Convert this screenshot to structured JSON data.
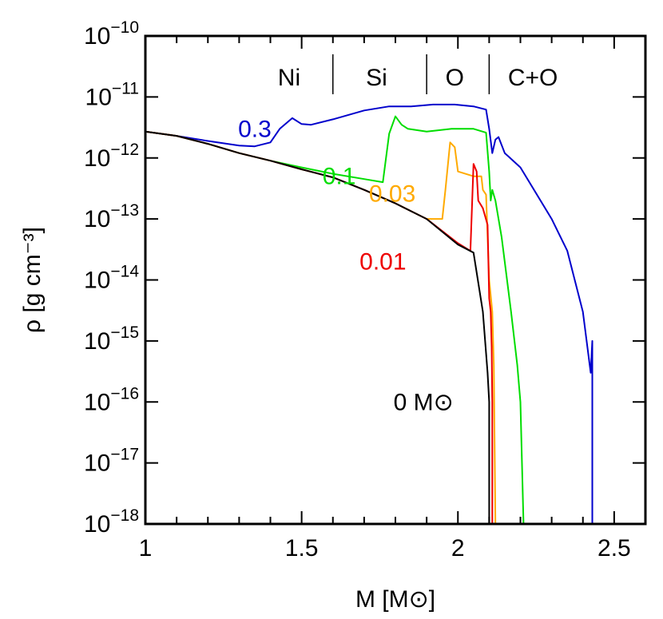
{
  "chart_data": {
    "type": "line",
    "xlabel": "M [M⊙]",
    "ylabel": "ρ [g cm⁻³]",
    "xlim": [
      1,
      2.6
    ],
    "ylim": [
      1e-18,
      1e-10
    ],
    "yscale": "log",
    "grid": false,
    "x_ticks": [
      "1",
      "1.5",
      "2",
      "2.5"
    ],
    "y_tick_exponents": [
      "−10",
      "−11",
      "−12",
      "−13",
      "−14",
      "−15",
      "−16",
      "−17",
      "−18"
    ],
    "y_tick_base": "10",
    "region_labels": [
      {
        "text": "Ni",
        "x": 1.46
      },
      {
        "text": "Si",
        "x": 1.74
      },
      {
        "text": "O",
        "x": 1.99
      },
      {
        "text": "C+O",
        "x": 2.24
      }
    ],
    "region_dividers": [
      1.6,
      1.9,
      2.1
    ],
    "series": [
      {
        "name": "0.3",
        "color": "#0000cc",
        "label_x": 1.35,
        "label_y": 3e-12,
        "points": [
          [
            1.0,
            2.7e-12
          ],
          [
            1.1,
            2.3e-12
          ],
          [
            1.2,
            1.9e-12
          ],
          [
            1.3,
            1.6e-12
          ],
          [
            1.35,
            1.55e-12
          ],
          [
            1.4,
            1.8e-12
          ],
          [
            1.43,
            3e-12
          ],
          [
            1.47,
            4.5e-12
          ],
          [
            1.5,
            3.6e-12
          ],
          [
            1.53,
            3.5e-12
          ],
          [
            1.6,
            4.3e-12
          ],
          [
            1.7,
            6e-12
          ],
          [
            1.78,
            7e-12
          ],
          [
            1.85,
            7e-12
          ],
          [
            1.88,
            7.2e-12
          ],
          [
            1.92,
            7.5e-12
          ],
          [
            1.99,
            7.5e-12
          ],
          [
            2.05,
            7e-12
          ],
          [
            2.09,
            6.2e-12
          ],
          [
            2.1,
            3e-12
          ],
          [
            2.11,
            1.2e-12
          ],
          [
            2.12,
            2e-12
          ],
          [
            2.13,
            2.2e-12
          ],
          [
            2.15,
            1.2e-12
          ],
          [
            2.2,
            7e-13
          ],
          [
            2.3,
            1e-13
          ],
          [
            2.35,
            3e-14
          ],
          [
            2.4,
            3e-15
          ],
          [
            2.425,
            3e-16
          ],
          [
            2.43,
            1e-15
          ],
          [
            2.43,
            1e-18
          ]
        ]
      },
      {
        "name": "0.1",
        "color": "#00dd00",
        "label_x": 1.62,
        "label_y": 5e-13,
        "points": [
          [
            1.0,
            2.7e-12
          ],
          [
            1.1,
            2.3e-12
          ],
          [
            1.2,
            1.7e-12
          ],
          [
            1.3,
            1.2e-12
          ],
          [
            1.4,
            9e-13
          ],
          [
            1.5,
            7e-13
          ],
          [
            1.6,
            5.5e-13
          ],
          [
            1.7,
            4.5e-13
          ],
          [
            1.76,
            4e-13
          ],
          [
            1.78,
            2.5e-12
          ],
          [
            1.8,
            4.8e-12
          ],
          [
            1.82,
            3.5e-12
          ],
          [
            1.84,
            3e-12
          ],
          [
            1.9,
            2.7e-12
          ],
          [
            1.98,
            3e-12
          ],
          [
            2.05,
            3e-12
          ],
          [
            2.09,
            2.6e-12
          ],
          [
            2.1,
            6e-13
          ],
          [
            2.105,
            2e-13
          ],
          [
            2.11,
            3e-13
          ],
          [
            2.12,
            2e-13
          ],
          [
            2.14,
            5e-14
          ],
          [
            2.17,
            3e-15
          ],
          [
            2.19,
            4e-16
          ],
          [
            2.2,
            1e-16
          ],
          [
            2.21,
            1e-18
          ]
        ]
      },
      {
        "name": "0.03",
        "color": "#ffaa00",
        "label_x": 1.79,
        "label_y": 2.6e-13,
        "points": [
          [
            1.0,
            2.7e-12
          ],
          [
            1.1,
            2.3e-12
          ],
          [
            1.2,
            1.7e-12
          ],
          [
            1.3,
            1.2e-12
          ],
          [
            1.4,
            9e-13
          ],
          [
            1.5,
            6.5e-13
          ],
          [
            1.6,
            4.8e-13
          ],
          [
            1.7,
            3e-13
          ],
          [
            1.8,
            1.8e-13
          ],
          [
            1.9,
            1e-13
          ],
          [
            1.95,
            1e-13
          ],
          [
            1.96,
            3e-13
          ],
          [
            1.975,
            1.8e-12
          ],
          [
            1.99,
            1.5e-12
          ],
          [
            2.0,
            6e-13
          ],
          [
            2.05,
            5e-13
          ],
          [
            2.075,
            5e-13
          ],
          [
            2.08,
            3e-13
          ],
          [
            2.09,
            2.5e-13
          ],
          [
            2.1,
            1e-14
          ],
          [
            2.11,
            3e-15
          ],
          [
            2.115,
            4e-16
          ],
          [
            2.12,
            1e-18
          ]
        ]
      },
      {
        "name": "0.01",
        "color": "#ee0000",
        "label_x": 1.76,
        "label_y": 2e-14,
        "points": [
          [
            1.0,
            2.7e-12
          ],
          [
            1.1,
            2.3e-12
          ],
          [
            1.2,
            1.7e-12
          ],
          [
            1.3,
            1.2e-12
          ],
          [
            1.4,
            9e-13
          ],
          [
            1.5,
            6.5e-13
          ],
          [
            1.6,
            4.8e-13
          ],
          [
            1.7,
            3e-13
          ],
          [
            1.8,
            1.8e-13
          ],
          [
            1.9,
            1e-13
          ],
          [
            2.0,
            4e-14
          ],
          [
            2.04,
            3e-14
          ],
          [
            2.05,
            8e-13
          ],
          [
            2.06,
            6e-13
          ],
          [
            2.065,
            2e-13
          ],
          [
            2.08,
            1.5e-13
          ],
          [
            2.095,
            8e-14
          ],
          [
            2.1,
            5e-15
          ],
          [
            2.105,
            3e-15
          ],
          [
            2.108,
            8e-16
          ],
          [
            2.11,
            1e-16
          ],
          [
            2.11,
            1e-18
          ]
        ]
      },
      {
        "name": "0 M⊙",
        "color": "#000000",
        "label_x": 1.89,
        "label_y": 1e-16,
        "points": [
          [
            1.0,
            2.7e-12
          ],
          [
            1.1,
            2.3e-12
          ],
          [
            1.2,
            1.7e-12
          ],
          [
            1.3,
            1.2e-12
          ],
          [
            1.4,
            9e-13
          ],
          [
            1.5,
            6.5e-13
          ],
          [
            1.6,
            4.8e-13
          ],
          [
            1.7,
            3e-13
          ],
          [
            1.8,
            1.8e-13
          ],
          [
            1.9,
            1e-13
          ],
          [
            2.0,
            3.8e-14
          ],
          [
            2.05,
            2.8e-14
          ],
          [
            2.08,
            3e-15
          ],
          [
            2.095,
            3e-16
          ],
          [
            2.1,
            1e-16
          ],
          [
            2.1,
            1e-18
          ]
        ]
      }
    ]
  }
}
